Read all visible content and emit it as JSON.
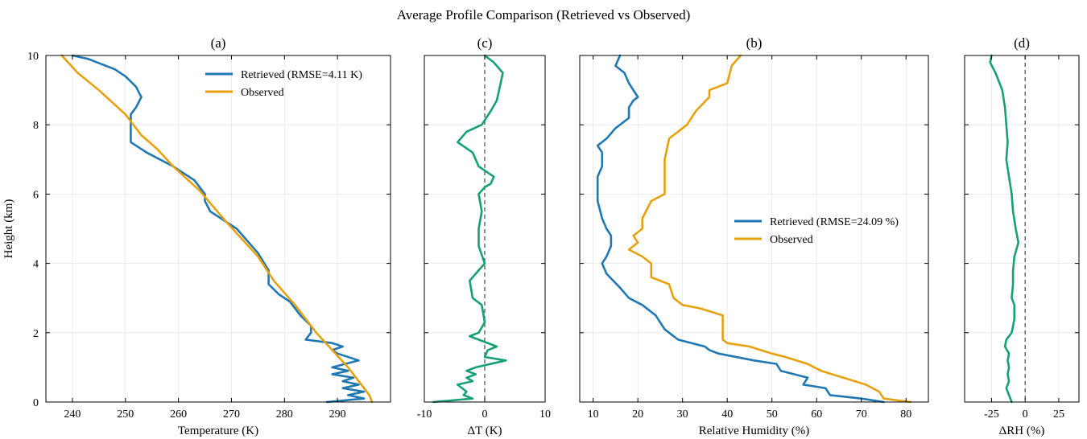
{
  "suptitle": "Average Profile Comparison (Retrieved vs Observed)",
  "colors": {
    "retrieved": "#1f77b4",
    "observed": "#e6a10f",
    "difference": "#16a077",
    "zero_line": "#555555"
  },
  "chart_data": [
    {
      "id": "a",
      "type": "line",
      "title": "(a)",
      "xlabel": "Temperature (K)",
      "ylabel": "Height (km)",
      "xlim": [
        235,
        300
      ],
      "ylim": [
        0,
        10
      ],
      "xticks": [
        240,
        250,
        260,
        270,
        280,
        290
      ],
      "yticks": [
        0,
        2,
        4,
        6,
        8,
        10
      ],
      "grid": true,
      "legend": "top-right",
      "series": [
        {
          "name": "Retrieved (RMSE=4.11 K)",
          "color_key": "retrieved",
          "points": [
            [
              288,
              0
            ],
            [
              295,
              0.1
            ],
            [
              292,
              0.2
            ],
            [
              295,
              0.3
            ],
            [
              291,
              0.4
            ],
            [
              294,
              0.5
            ],
            [
              291,
              0.6
            ],
            [
              293,
              0.7
            ],
            [
              289,
              0.8
            ],
            [
              292,
              0.9
            ],
            [
              289,
              1.0
            ],
            [
              294,
              1.2
            ],
            [
              290,
              1.4
            ],
            [
              289,
              1.5
            ],
            [
              291,
              1.6
            ],
            [
              289,
              1.7
            ],
            [
              284,
              1.8
            ],
            [
              285,
              2.0
            ],
            [
              285,
              2.2
            ],
            [
              283,
              2.5
            ],
            [
              281,
              2.9
            ],
            [
              279,
              3.1
            ],
            [
              277,
              3.4
            ],
            [
              277,
              3.6
            ],
            [
              277,
              3.8
            ],
            [
              275,
              4.3
            ],
            [
              271,
              5.0
            ],
            [
              266,
              5.5
            ],
            [
              265,
              5.8
            ],
            [
              265,
              6.0
            ],
            [
              263,
              6.4
            ],
            [
              262,
              6.5
            ],
            [
              260,
              6.7
            ],
            [
              259,
              6.8
            ],
            [
              254,
              7.2
            ],
            [
              251,
              7.5
            ],
            [
              251,
              7.7
            ],
            [
              251,
              7.9
            ],
            [
              251,
              8.3
            ],
            [
              252,
              8.5
            ],
            [
              253,
              8.8
            ],
            [
              252,
              9.1
            ],
            [
              250,
              9.4
            ],
            [
              248,
              9.6
            ],
            [
              243,
              9.9
            ],
            [
              240,
              10.0
            ]
          ]
        },
        {
          "name": "Observed",
          "color_key": "observed",
          "points": [
            [
              296.5,
              0
            ],
            [
              296,
              0.2
            ],
            [
              294,
              0.6
            ],
            [
              292,
              1.0
            ],
            [
              289,
              1.5
            ],
            [
              286,
              2.0
            ],
            [
              282,
              2.8
            ],
            [
              278,
              3.5
            ],
            [
              275,
              4.2
            ],
            [
              269,
              5.2
            ],
            [
              264,
              6.1
            ],
            [
              259,
              6.8
            ],
            [
              256,
              7.3
            ],
            [
              253,
              7.7
            ],
            [
              250,
              8.3
            ],
            [
              245,
              9.0
            ],
            [
              241,
              9.5
            ],
            [
              238,
              10.0
            ]
          ]
        }
      ]
    },
    {
      "id": "c",
      "type": "line",
      "title": "(c)",
      "xlabel": "ΔT (K)",
      "xlim": [
        -10,
        10
      ],
      "ylim": [
        0,
        10
      ],
      "xticks": [
        -10,
        0,
        10
      ],
      "yticks": [
        0,
        2,
        4,
        6,
        8,
        10
      ],
      "grid": true,
      "zero_line": true,
      "series": [
        {
          "color_key": "difference",
          "points": [
            [
              -8.5,
              0
            ],
            [
              -2,
              0.1
            ],
            [
              -3.5,
              0.2
            ],
            [
              -3,
              0.3
            ],
            [
              -4.5,
              0.5
            ],
            [
              -2,
              0.6
            ],
            [
              -3,
              0.7
            ],
            [
              -1.5,
              0.8
            ],
            [
              -3,
              0.9
            ],
            [
              -1.5,
              1.0
            ],
            [
              3.5,
              1.2
            ],
            [
              0,
              1.3
            ],
            [
              0.5,
              1.5
            ],
            [
              2,
              1.6
            ],
            [
              -2.5,
              1.9
            ],
            [
              -1,
              2.0
            ],
            [
              0,
              2.3
            ],
            [
              -0.5,
              2.8
            ],
            [
              -2,
              3.0
            ],
            [
              -2.5,
              3.5
            ],
            [
              0,
              4.0
            ],
            [
              -1,
              4.5
            ],
            [
              -1,
              5.0
            ],
            [
              -0.5,
              5.5
            ],
            [
              -1,
              6.0
            ],
            [
              0,
              6.2
            ],
            [
              1,
              6.3
            ],
            [
              1.5,
              6.5
            ],
            [
              -1,
              6.8
            ],
            [
              -2,
              7.2
            ],
            [
              -4.5,
              7.5
            ],
            [
              -3,
              7.8
            ],
            [
              -0.5,
              8.0
            ],
            [
              1,
              8.4
            ],
            [
              2,
              8.7
            ],
            [
              2.5,
              9.1
            ],
            [
              3,
              9.5
            ],
            [
              1.5,
              9.8
            ],
            [
              0,
              10.0
            ]
          ]
        }
      ]
    },
    {
      "id": "b",
      "type": "line",
      "title": "(b)",
      "xlabel": "Relative Humidity (%)",
      "xlim": [
        7,
        85
      ],
      "ylim": [
        0,
        10
      ],
      "xticks": [
        10,
        20,
        30,
        40,
        50,
        60,
        70,
        80
      ],
      "yticks": [
        0,
        2,
        4,
        6,
        8,
        10
      ],
      "grid": true,
      "legend": "center-right",
      "series": [
        {
          "name": "Retrieved (RMSE=24.09 %)",
          "color_key": "retrieved",
          "points": [
            [
              75,
              0
            ],
            [
              70,
              0.1
            ],
            [
              63,
              0.2
            ],
            [
              62,
              0.4
            ],
            [
              57,
              0.5
            ],
            [
              58,
              0.7
            ],
            [
              52,
              0.9
            ],
            [
              51,
              1.1
            ],
            [
              46,
              1.2
            ],
            [
              38,
              1.4
            ],
            [
              36,
              1.5
            ],
            [
              35,
              1.6
            ],
            [
              29,
              1.8
            ],
            [
              27,
              2.0
            ],
            [
              26,
              2.1
            ],
            [
              25,
              2.3
            ],
            [
              24,
              2.5
            ],
            [
              21,
              2.8
            ],
            [
              18,
              3.0
            ],
            [
              16,
              3.3
            ],
            [
              13,
              3.7
            ],
            [
              12,
              4.0
            ],
            [
              13,
              4.2
            ],
            [
              14,
              4.5
            ],
            [
              14,
              4.8
            ],
            [
              13,
              5.0
            ],
            [
              12,
              5.3
            ],
            [
              11,
              5.8
            ],
            [
              11,
              6.5
            ],
            [
              12,
              6.8
            ],
            [
              12,
              7.2
            ],
            [
              11,
              7.4
            ],
            [
              13,
              7.6
            ],
            [
              15,
              7.9
            ],
            [
              18,
              8.2
            ],
            [
              18,
              8.5
            ],
            [
              19,
              8.7
            ],
            [
              20,
              8.8
            ],
            [
              18,
              9.2
            ],
            [
              17,
              9.5
            ],
            [
              15,
              9.7
            ],
            [
              16,
              10.0
            ]
          ]
        },
        {
          "name": "Observed",
          "color_key": "observed",
          "points": [
            [
              81,
              0
            ],
            [
              75,
              0.1
            ],
            [
              74,
              0.3
            ],
            [
              71,
              0.5
            ],
            [
              66,
              0.7
            ],
            [
              61,
              0.9
            ],
            [
              58,
              1.1
            ],
            [
              53,
              1.3
            ],
            [
              50,
              1.4
            ],
            [
              45,
              1.6
            ],
            [
              40,
              1.7
            ],
            [
              39,
              1.8
            ],
            [
              39,
              2.5
            ],
            [
              34,
              2.7
            ],
            [
              30,
              2.8
            ],
            [
              28,
              3.0
            ],
            [
              27,
              3.4
            ],
            [
              23,
              3.6
            ],
            [
              23,
              4.0
            ],
            [
              21,
              4.2
            ],
            [
              18,
              4.4
            ],
            [
              20,
              4.6
            ],
            [
              19,
              4.8
            ],
            [
              21,
              5.0
            ],
            [
              21,
              5.3
            ],
            [
              23,
              5.8
            ],
            [
              26,
              6.0
            ],
            [
              26,
              7.0
            ],
            [
              27,
              7.6
            ],
            [
              31,
              8.0
            ],
            [
              33,
              8.4
            ],
            [
              36,
              8.8
            ],
            [
              36,
              9.0
            ],
            [
              40,
              9.2
            ],
            [
              41,
              9.7
            ],
            [
              43,
              10.0
            ]
          ]
        }
      ]
    },
    {
      "id": "d",
      "type": "line",
      "title": "(d)",
      "xlabel": "ΔRH (%)",
      "xlim": [
        -45,
        40
      ],
      "ylim": [
        0,
        10
      ],
      "xticks": [
        -25,
        0,
        25
      ],
      "yticks": [
        0,
        2,
        4,
        6,
        8,
        10
      ],
      "grid": true,
      "zero_line": true,
      "series": [
        {
          "color_key": "difference",
          "points": [
            [
              -10,
              0
            ],
            [
              -12,
              0.2
            ],
            [
              -14,
              0.4
            ],
            [
              -12,
              0.6
            ],
            [
              -13,
              0.8
            ],
            [
              -12,
              1.0
            ],
            [
              -13,
              1.2
            ],
            [
              -12,
              1.4
            ],
            [
              -15,
              1.6
            ],
            [
              -14,
              1.8
            ],
            [
              -10,
              2.0
            ],
            [
              -8,
              2.4
            ],
            [
              -8,
              2.8
            ],
            [
              -10,
              3.0
            ],
            [
              -9,
              3.4
            ],
            [
              -9,
              3.8
            ],
            [
              -8,
              4.2
            ],
            [
              -5,
              4.6
            ],
            [
              -7,
              5.0
            ],
            [
              -9,
              5.5
            ],
            [
              -10,
              6.0
            ],
            [
              -12,
              6.5
            ],
            [
              -14,
              7.0
            ],
            [
              -13,
              7.5
            ],
            [
              -14,
              8.0
            ],
            [
              -15,
              8.5
            ],
            [
              -17,
              9.0
            ],
            [
              -22,
              9.5
            ],
            [
              -26,
              9.8
            ],
            [
              -25,
              10.0
            ]
          ]
        }
      ]
    }
  ]
}
